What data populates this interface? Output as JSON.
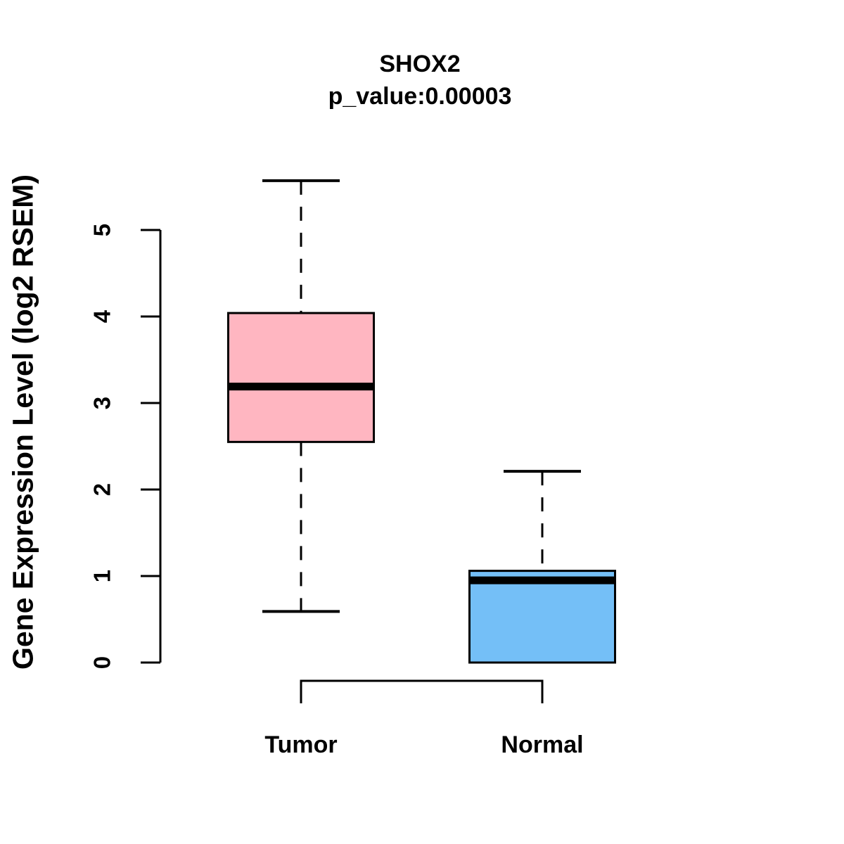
{
  "chart_data": {
    "type": "boxplot",
    "title": "SHOX2",
    "subtitle": "p_value:0.00003",
    "ylabel": "Gene Expression Level (log2 RSEM)",
    "xlabel": "",
    "ylim": [
      0,
      5.6
    ],
    "yticks": [
      0,
      1,
      2,
      3,
      4,
      5
    ],
    "grid": false,
    "legend": "none",
    "categories": [
      "Tumor",
      "Normal"
    ],
    "series": [
      {
        "name": "Tumor",
        "min": 0.59,
        "q1": 2.55,
        "median": 3.19,
        "q3": 4.04,
        "max": 5.57,
        "fill": "#FFB6C1"
      },
      {
        "name": "Normal",
        "min": 0.0,
        "q1": 0.0,
        "median": 0.95,
        "q3": 1.06,
        "max": 2.21,
        "fill": "#74BFF7"
      }
    ],
    "colors": {
      "stroke": "#000000",
      "tumor_fill": "#FFB6C1",
      "normal_fill": "#74BFF7",
      "background": "#FFFFFF"
    }
  }
}
